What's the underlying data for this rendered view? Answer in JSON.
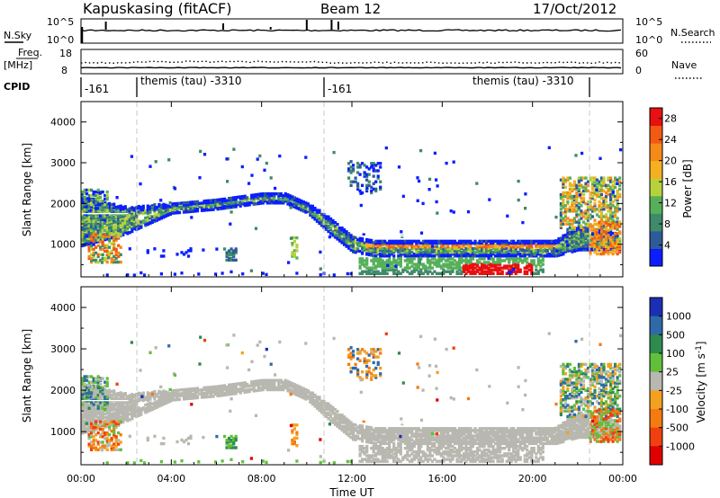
{
  "header": {
    "station": "Kapuskasing (fitACF)",
    "beam": "Beam 12",
    "date": "17/Oct/2012"
  },
  "strips": {
    "nsky_label": "N.Sky",
    "nsky_ticks": [
      "10^5",
      "10^0"
    ],
    "nsearch_label": "N.Search",
    "nsearch_ticks": [
      "10^5",
      "10^0"
    ],
    "freq_label": "Freq.",
    "freq_unit": "[MHz]",
    "freq_ticks": [
      "18",
      "8"
    ],
    "nave_label": "Nave",
    "nave_ticks": [
      "60",
      "0"
    ],
    "cpid_label": "CPID",
    "cpid_segments": [
      "-161",
      "themis (tau) -3310",
      "-161",
      "themis (tau) -3310"
    ]
  },
  "colors": {
    "power_scale": [
      "#0a1eff",
      "#2f5a9a",
      "#3f8a6a",
      "#56b05a",
      "#b7d13b",
      "#f4b020",
      "#f58a18",
      "#f25a14",
      "#e81010"
    ],
    "velocity_scale": [
      "#1b2fb5",
      "#2f6aa8",
      "#2f8a4e",
      "#60c03a",
      "#b8b8b0",
      "#f4a020",
      "#f57a10",
      "#f04010",
      "#e00000"
    ],
    "ground_scatter": "#b8b8b0"
  },
  "chart_data": [
    {
      "type": "heatmap",
      "name": "power",
      "ylabel": "Slant Range [km]",
      "yticks": [
        "1000",
        "2000",
        "3000",
        "4000"
      ],
      "ylim": [
        200,
        4500
      ],
      "x": [
        "00:00",
        "04:00",
        "08:00",
        "12:00",
        "16:00",
        "20:00",
        "00:00"
      ],
      "colorbar_label": "Power [dB]",
      "colorbar_ticks": [
        "4",
        "8",
        "12",
        "16",
        "20",
        "24",
        "28"
      ],
      "colorbar_range": [
        0,
        30
      ],
      "grid": false
    },
    {
      "type": "heatmap",
      "name": "velocity",
      "ylabel": "Slant Range [km]",
      "yticks": [
        "1000",
        "2000",
        "3000",
        "4000"
      ],
      "ylim": [
        200,
        4500
      ],
      "x": [
        "00:00",
        "04:00",
        "08:00",
        "12:00",
        "16:00",
        "20:00",
        "00:00"
      ],
      "xlabel": "Time UT",
      "colorbar_label": "Velocity [m s^-1]",
      "colorbar_ticks": [
        "1000",
        "500",
        "100",
        "25",
        "-25",
        "-100",
        "-500",
        "-1000"
      ],
      "colorbar_range": [
        -1000,
        1000
      ],
      "grid": false
    }
  ]
}
